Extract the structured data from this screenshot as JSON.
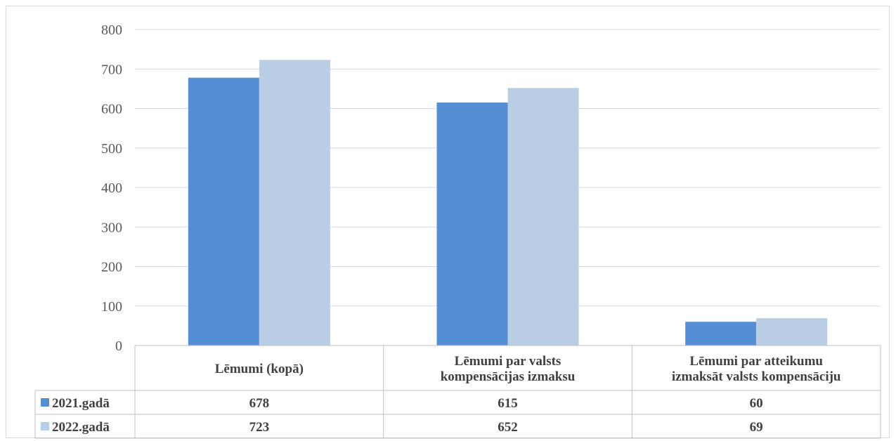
{
  "chart_data": {
    "type": "bar",
    "categories": [
      [
        "Lēmumi (kopā)"
      ],
      [
        "Lēmumi par valsts",
        "kompensācijas izmaksu"
      ],
      [
        "Lēmumi par atteikumu",
        "izmaksāt valsts kompensāciju"
      ]
    ],
    "series": [
      {
        "name": "2021.gadā",
        "values": [
          678,
          615,
          60
        ],
        "color": "#558ed5"
      },
      {
        "name": "2022.gadā",
        "values": [
          723,
          652,
          69
        ],
        "color": "#b9cde5"
      }
    ],
    "ylim": [
      0,
      800
    ],
    "yticks": [
      0,
      100,
      200,
      300,
      400,
      500,
      600,
      700,
      800
    ],
    "grid": true,
    "legend": "data-table-rows"
  }
}
